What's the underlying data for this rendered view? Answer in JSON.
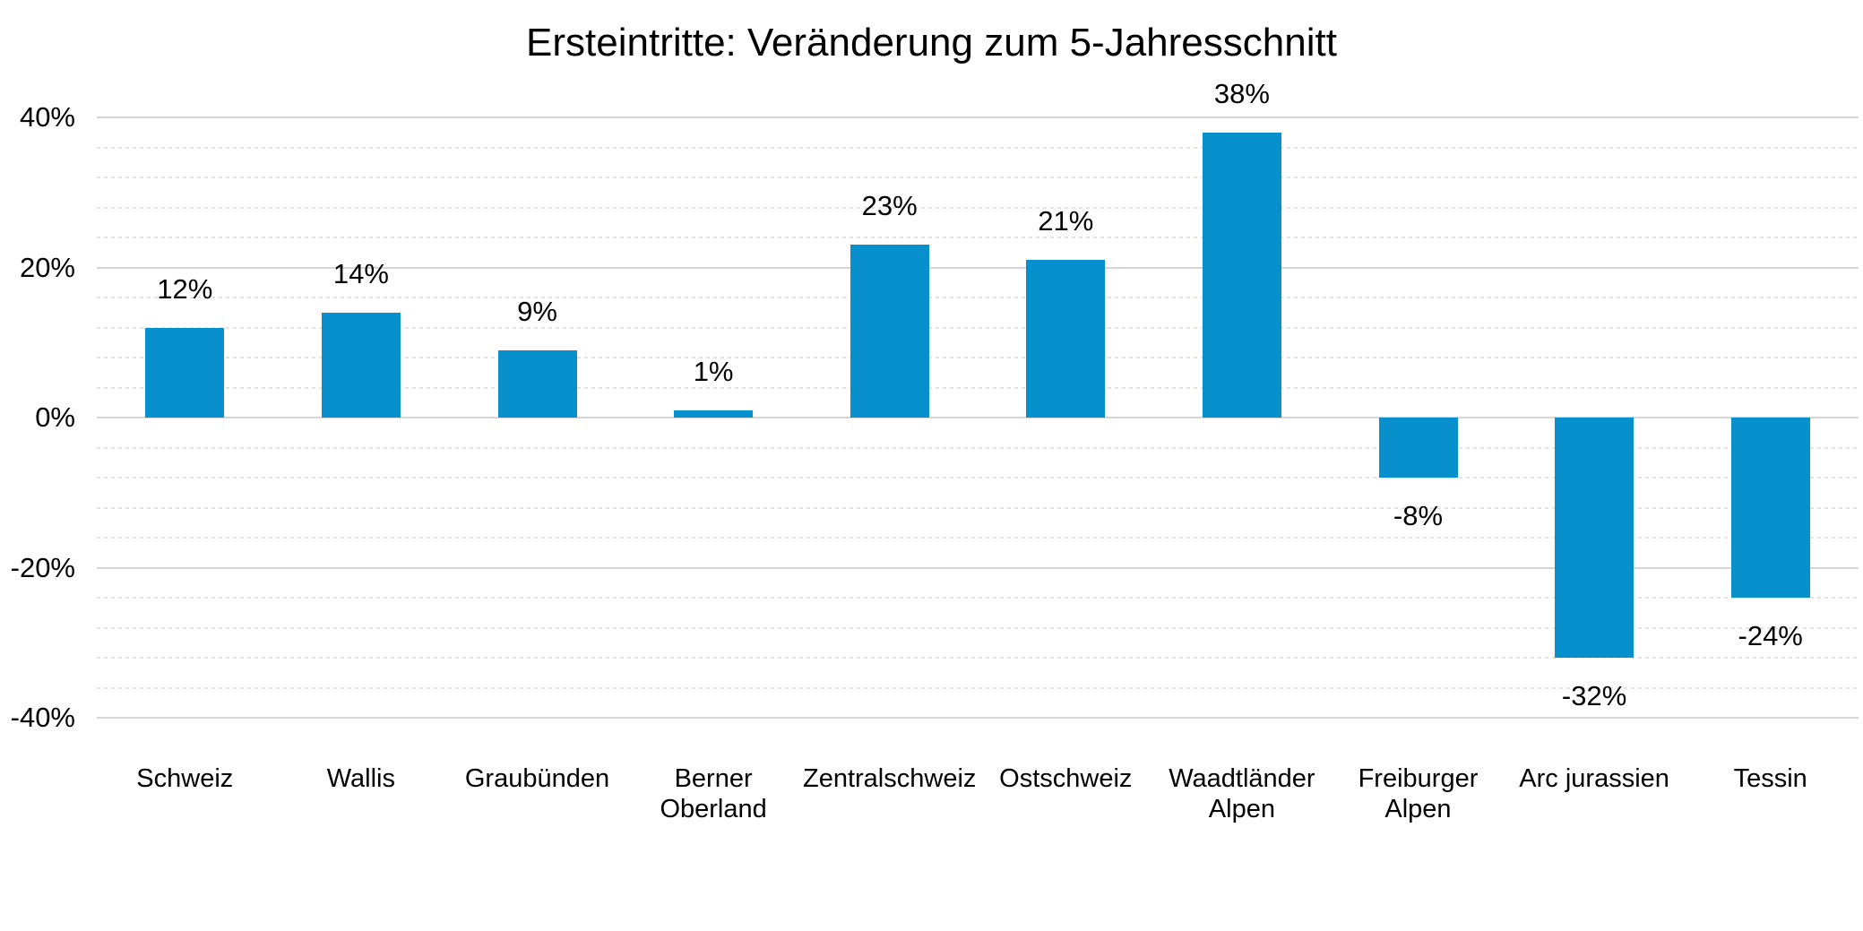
{
  "chart_data": {
    "type": "bar",
    "title": "Ersteintritte: Veränderung zum 5-Jahresschnitt",
    "categories": [
      "Schweiz",
      "Wallis",
      "Graubünden",
      "Berner Oberland",
      "Zentralschweiz",
      "Ostschweiz",
      "Waadtländer Alpen",
      "Freiburger Alpen",
      "Arc jurassien",
      "Tessin"
    ],
    "values": [
      12,
      14,
      9,
      1,
      23,
      21,
      38,
      -8,
      -32,
      -24
    ],
    "data_labels": [
      "12%",
      "14%",
      "9%",
      "1%",
      "23%",
      "21%",
      "38%",
      "-8%",
      "-32%",
      "-24%"
    ],
    "xlabel": "",
    "ylabel": "",
    "ylim": [
      -40,
      40
    ],
    "yticks": [
      40,
      20,
      0,
      -20,
      -40
    ],
    "ytick_labels": [
      "40%",
      "20%",
      "0%",
      "-20%",
      "-40%"
    ],
    "minor_unit": 4,
    "major_unit": 20,
    "grid": true,
    "legend": "none",
    "bar_color": "#0890CC",
    "major_grid_color": "#d6d6d6",
    "minor_grid_color": "#e4e4e4",
    "text_color": "#000000",
    "background_color": "#ffffff"
  }
}
